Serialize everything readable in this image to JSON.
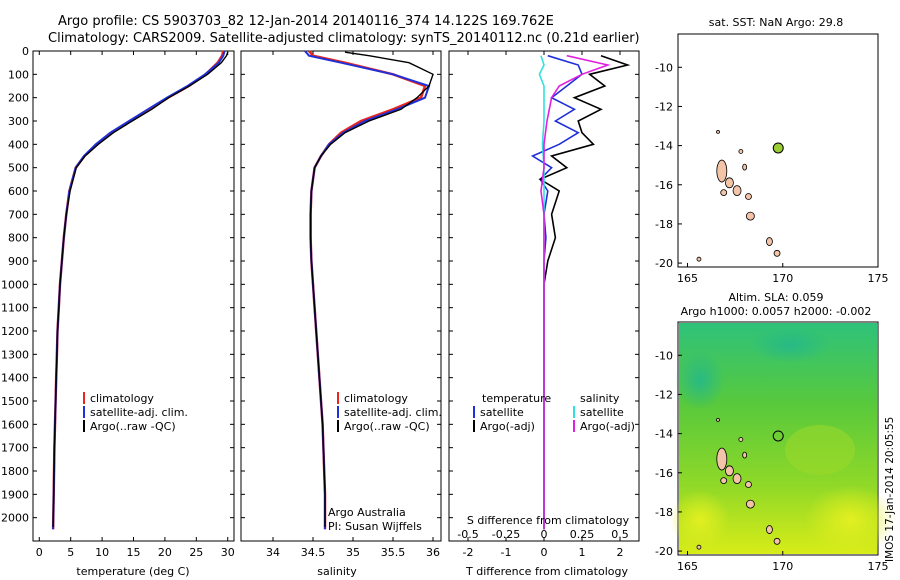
{
  "header": {
    "line1": "Argo profile: CS 5903703_82 12-Jan-2014 20140116_374 14.122S 169.762E",
    "line2": "Climatology: CARS2009. Satellite-adjusted climatology: synTS_20140112.nc (0.21d earlier)"
  },
  "colors": {
    "climatology": "#e8261e",
    "satellite": "#2030d8",
    "argo": "#000000",
    "sat_salinity": "#33e0e0",
    "argo_salinity": "#e020e0",
    "island": "#f4c4a8",
    "argo_marker": "#9acd32"
  },
  "footer": {
    "credit": "IMOS 17-Jan-2014 20:05:55"
  },
  "legend_panel1": {
    "items": [
      "climatology",
      "satellite-adj. clim.",
      "Argo(..raw -QC)"
    ]
  },
  "legend_panel2": {
    "items": [
      "climatology",
      "satellite-adj. clim.",
      "Argo(..raw -QC)"
    ],
    "note1": "Argo Australia",
    "note2": "PI: Susan Wijffels"
  },
  "legend_panel3": {
    "temp_title": "temperature",
    "sal_title": "salinity",
    "temp_items": [
      "satellite",
      "Argo(-adj)"
    ],
    "sal_items": [
      "satellite",
      "Argo(-adj)"
    ]
  },
  "chart_data": [
    {
      "type": "line",
      "xlabel": "temperature (deg C)",
      "ylim": [
        2100,
        0
      ],
      "xlim": [
        -1,
        31
      ],
      "xticks": [
        0,
        5,
        10,
        15,
        20,
        25,
        30
      ],
      "yticks": [
        0,
        100,
        200,
        300,
        400,
        500,
        600,
        700,
        800,
        900,
        1000,
        1100,
        1200,
        1300,
        1400,
        1500,
        1600,
        1700,
        1800,
        1900,
        2000
      ],
      "series": [
        {
          "name": "climatology",
          "x": [
            29.3,
            29.1,
            28.4,
            26.5,
            23.8,
            20.5,
            17.5,
            14.5,
            11.5,
            9.2,
            7.2,
            5.8,
            4.8,
            4.3,
            3.9,
            3.6,
            3.3,
            3.1,
            2.9,
            2.8,
            2.7,
            2.6,
            2.5,
            2.4,
            2.3,
            2.2
          ],
          "y": [
            0,
            20,
            50,
            100,
            150,
            200,
            250,
            300,
            350,
            400,
            450,
            500,
            600,
            700,
            800,
            900,
            1000,
            1100,
            1200,
            1300,
            1400,
            1500,
            1600,
            1700,
            1900,
            2050
          ]
        },
        {
          "name": "satellite-adj. clim.",
          "x": [
            29.5,
            29.3,
            28.6,
            26.4,
            23.6,
            20.3,
            17.3,
            14.3,
            11.3,
            9.0,
            7.1,
            5.8,
            4.8,
            4.3,
            3.9,
            3.6,
            3.3,
            3.1,
            2.9,
            2.8,
            2.7,
            2.6,
            2.5,
            2.4,
            2.3,
            2.2
          ],
          "y": [
            0,
            20,
            50,
            100,
            150,
            200,
            250,
            300,
            350,
            400,
            450,
            500,
            600,
            700,
            800,
            900,
            1000,
            1100,
            1200,
            1300,
            1400,
            1500,
            1600,
            1700,
            1900,
            2050
          ]
        },
        {
          "name": "Argo(..raw -QC)",
          "x": [
            30.0,
            29.8,
            29.0,
            26.8,
            23.9,
            20.6,
            17.9,
            14.8,
            11.8,
            9.4,
            7.3,
            5.9,
            4.9,
            4.3,
            3.9,
            3.6,
            3.3,
            3.1,
            2.9,
            2.8,
            2.7,
            2.6,
            2.5,
            2.4,
            2.3,
            2.2
          ],
          "y": [
            5,
            20,
            50,
            100,
            150,
            200,
            250,
            300,
            350,
            400,
            450,
            500,
            600,
            700,
            800,
            900,
            1000,
            1100,
            1200,
            1300,
            1400,
            1500,
            1600,
            1700,
            1900,
            2040
          ]
        }
      ]
    },
    {
      "type": "line",
      "xlabel": "salinity",
      "ylim": [
        2100,
        0
      ],
      "xlim": [
        33.6,
        36.1
      ],
      "xticks": [
        34,
        34.5,
        35,
        35.5,
        36
      ],
      "series": [
        {
          "name": "climatology",
          "x": [
            34.45,
            34.5,
            34.9,
            35.5,
            35.9,
            35.85,
            35.5,
            35.1,
            34.85,
            34.7,
            34.6,
            34.52,
            34.48,
            34.47,
            34.47,
            34.48,
            34.5,
            34.52,
            34.54,
            34.56,
            34.58,
            34.6,
            34.62,
            34.63,
            34.65,
            34.65
          ],
          "y": [
            0,
            20,
            50,
            100,
            150,
            200,
            250,
            300,
            350,
            400,
            450,
            500,
            600,
            700,
            800,
            900,
            1000,
            1100,
            1200,
            1300,
            1400,
            1500,
            1600,
            1700,
            1900,
            2050
          ]
        },
        {
          "name": "satellite-adj. clim.",
          "x": [
            34.4,
            34.45,
            34.85,
            35.5,
            35.95,
            35.9,
            35.55,
            35.15,
            34.88,
            34.7,
            34.6,
            34.52,
            34.48,
            34.47,
            34.47,
            34.48,
            34.5,
            34.52,
            34.54,
            34.56,
            34.58,
            34.6,
            34.62,
            34.63,
            34.65,
            34.65
          ],
          "y": [
            0,
            20,
            50,
            100,
            150,
            200,
            250,
            300,
            350,
            400,
            450,
            500,
            600,
            700,
            800,
            900,
            1000,
            1100,
            1200,
            1300,
            1400,
            1500,
            1600,
            1700,
            1900,
            2050
          ]
        },
        {
          "name": "Argo(..raw -QC)",
          "x": [
            34.9,
            35.2,
            35.7,
            36.0,
            35.95,
            35.8,
            35.6,
            35.2,
            34.9,
            34.72,
            34.6,
            34.52,
            34.48,
            34.47,
            34.47,
            34.48,
            34.5,
            34.52,
            34.54,
            34.56,
            34.58,
            34.6,
            34.62,
            34.63,
            34.65,
            34.65
          ],
          "y": [
            5,
            20,
            50,
            100,
            150,
            200,
            250,
            300,
            350,
            400,
            450,
            500,
            600,
            700,
            800,
            900,
            1000,
            1100,
            1200,
            1300,
            1400,
            1500,
            1600,
            1700,
            1900,
            2040
          ]
        }
      ]
    },
    {
      "type": "line",
      "xlabel": "T difference from climatology",
      "x2label": "S difference from climatology",
      "ylim": [
        2100,
        0
      ],
      "xlim": [
        -2.5,
        2.5
      ],
      "x2lim": [
        -0.625,
        0.625
      ],
      "xticks": [
        -2,
        -1,
        0,
        1,
        2
      ],
      "x2ticks": [
        -0.5,
        -0.25,
        0,
        0.25,
        0.5
      ],
      "series": [
        {
          "name": "temperature satellite",
          "x": [
            0.1,
            0.9,
            1.0,
            0.6,
            0.2,
            0.8,
            0.3,
            0.9,
            0.4,
            -0.3,
            0.2,
            -0.1,
            0.1,
            0.0,
            0.05,
            0.0,
            0.0,
            0.0,
            0.0,
            0.0,
            0.0,
            0.0,
            0.0
          ],
          "y": [
            20,
            60,
            100,
            150,
            200,
            250,
            300,
            350,
            400,
            450,
            500,
            550,
            600,
            700,
            800,
            900,
            1000,
            1200,
            1400,
            1600,
            1800,
            1900,
            2050
          ]
        },
        {
          "name": "temperature Argo(-adj)",
          "x": [
            1.5,
            2.2,
            1.2,
            1.6,
            0.8,
            1.5,
            0.9,
            1.0,
            1.3,
            0.2,
            0.6,
            -0.1,
            0.4,
            0.2,
            0.3,
            0.1,
            0.0,
            0.0,
            0.0,
            0.0,
            0.0,
            0.0,
            0.0
          ],
          "y": [
            20,
            60,
            100,
            150,
            200,
            250,
            300,
            350,
            400,
            450,
            500,
            550,
            600,
            700,
            800,
            900,
            1000,
            1200,
            1400,
            1600,
            1800,
            1900,
            2050
          ]
        },
        {
          "name": "salinity satellite",
          "x": [
            -0.02,
            0.0,
            -0.03,
            0.0,
            0.0,
            0.0,
            -0.01,
            0.0,
            0.0,
            0.0,
            0.0,
            0.0,
            0.0,
            0.0,
            0.0,
            0.0,
            0.0,
            0.0,
            0.0
          ],
          "y": [
            20,
            60,
            100,
            150,
            200,
            300,
            400,
            500,
            600,
            700,
            800,
            900,
            1000,
            1200,
            1400,
            1600,
            1800,
            1900,
            2050
          ]
        },
        {
          "name": "salinity Argo(-adj)",
          "x": [
            0.15,
            0.42,
            0.25,
            0.1,
            0.05,
            0.02,
            0.0,
            0.0,
            -0.02,
            0.0,
            0.0,
            0.0,
            0.0,
            0.0,
            0.0,
            0.0,
            0.0,
            0.0,
            0.0
          ],
          "y": [
            20,
            60,
            100,
            150,
            200,
            300,
            400,
            500,
            600,
            700,
            800,
            900,
            1000,
            1200,
            1400,
            1600,
            1800,
            1900,
            2050
          ]
        }
      ]
    },
    {
      "type": "map",
      "title": "sat. SST: NaN Argo: 29.8",
      "xlim": [
        164.5,
        175
      ],
      "ylim": [
        -20.2,
        -8.3
      ],
      "xticks": [
        165,
        170,
        175
      ],
      "yticks": [
        -10,
        -12,
        -14,
        -16,
        -18,
        -20
      ],
      "argo_position": {
        "lon": 169.762,
        "lat": -14.122
      }
    },
    {
      "type": "heatmap",
      "title": "Altim. SLA: 0.059",
      "subtitle": "Argo h1000: 0.0057 h2000: -0.002",
      "xlim": [
        164.5,
        175
      ],
      "ylim": [
        -20.2,
        -8.3
      ],
      "xticks": [
        165,
        170,
        175
      ],
      "yticks": [
        -10,
        -12,
        -14,
        -16,
        -18,
        -20
      ],
      "argo_position": {
        "lon": 169.762,
        "lat": -14.122
      }
    }
  ]
}
